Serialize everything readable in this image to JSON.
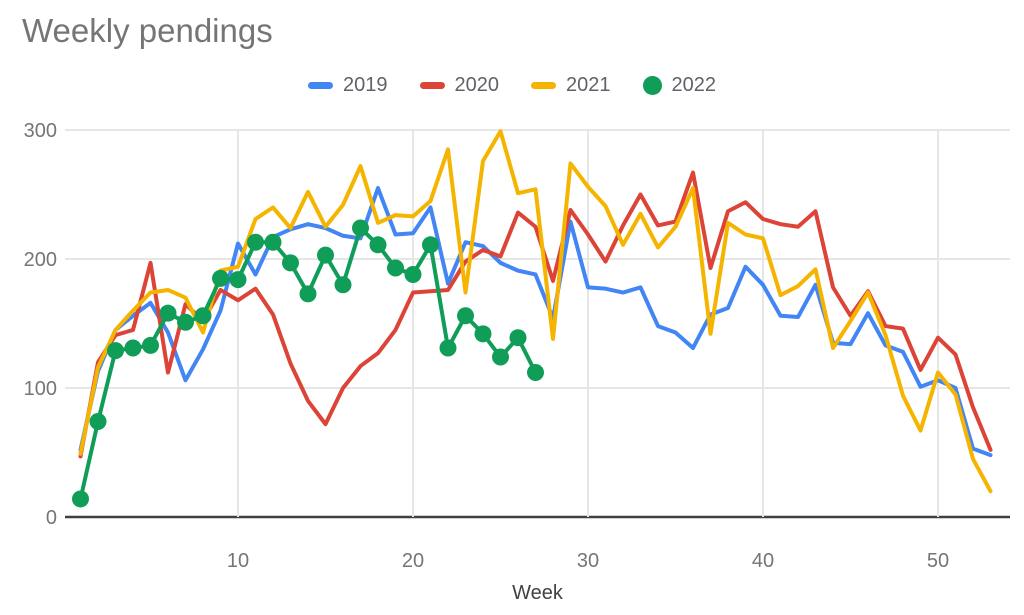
{
  "chart_data": {
    "type": "line",
    "title": "Weekly pendings",
    "xlabel": "Week",
    "ylabel": "",
    "x_range": [
      1,
      53
    ],
    "ylim": [
      0,
      300
    ],
    "x_ticks": [
      10,
      20,
      30,
      40,
      50
    ],
    "y_ticks": [
      0,
      100,
      200,
      300
    ],
    "grid": true,
    "legend_position": "top",
    "background_color": "#ffffff",
    "axis_label_color": "#757575",
    "axis_title_color": "#424242",
    "gridline_color": "#e6e6e6",
    "axis_line_color": "#3c4043",
    "series": [
      {
        "name": "2019",
        "color": "#4285f4",
        "style": "line",
        "start_week": 1,
        "values": [
          52,
          113,
          145,
          156,
          166,
          143,
          106,
          130,
          160,
          212,
          188,
          217,
          223,
          227,
          224,
          218,
          216,
          255,
          219,
          220,
          240,
          181,
          213,
          210,
          197,
          191,
          188,
          154,
          229,
          178,
          177,
          174,
          178,
          148,
          143,
          131,
          157,
          162,
          194,
          180,
          156,
          155,
          180,
          135,
          134,
          158,
          133,
          128,
          101,
          106,
          100,
          53,
          48
        ]
      },
      {
        "name": "2020",
        "color": "#db4437",
        "style": "line",
        "start_week": 1,
        "values": [
          47,
          120,
          141,
          145,
          197,
          112,
          165,
          152,
          176,
          168,
          177,
          157,
          119,
          90,
          72,
          100,
          117,
          127,
          145,
          174,
          175,
          176,
          198,
          207,
          202,
          236,
          225,
          183,
          238,
          219,
          198,
          226,
          250,
          226,
          229,
          267,
          193,
          237,
          244,
          231,
          227,
          225,
          237,
          178,
          156,
          175,
          148,
          146,
          114,
          139,
          126,
          85,
          52
        ]
      },
      {
        "name": "2021",
        "color": "#f4b400",
        "style": "line",
        "start_week": 1,
        "values": [
          49,
          116,
          145,
          160,
          174,
          176,
          170,
          143,
          191,
          194,
          231,
          240,
          224,
          252,
          225,
          242,
          272,
          228,
          234,
          233,
          245,
          285,
          174,
          276,
          299,
          251,
          254,
          138,
          274,
          256,
          241,
          211,
          235,
          209,
          225,
          255,
          142,
          228,
          219,
          216,
          172,
          179,
          192,
          131,
          152,
          174,
          141,
          94,
          67,
          112,
          95,
          45,
          20
        ]
      },
      {
        "name": "2022",
        "color": "#0f9d58",
        "style": "line+markers",
        "start_week": 1,
        "values": [
          14,
          74,
          129,
          131,
          133,
          158,
          151,
          156,
          185,
          184,
          213,
          213,
          197,
          173,
          203,
          180,
          224,
          211,
          193,
          188,
          211,
          131,
          156,
          142,
          124,
          139,
          112
        ]
      }
    ]
  }
}
